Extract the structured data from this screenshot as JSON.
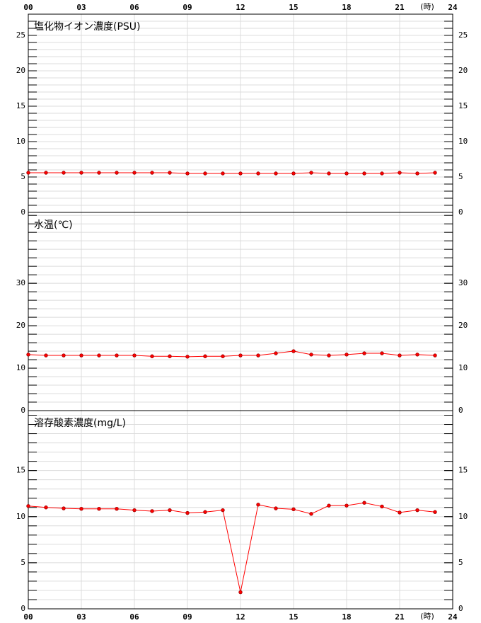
{
  "chart_data": [
    {
      "type": "line",
      "title": "塩化物イオン濃度(PSU)",
      "xlabel": "(時)",
      "xtick_labels": "top",
      "x": [
        0,
        1,
        2,
        3,
        4,
        5,
        6,
        7,
        8,
        9,
        10,
        11,
        12,
        13,
        14,
        15,
        16,
        17,
        18,
        19,
        20,
        21,
        22,
        23
      ],
      "series": [
        {
          "color": "#ff0000",
          "values": [
            5.6,
            5.6,
            5.6,
            5.6,
            5.6,
            5.6,
            5.6,
            5.6,
            5.6,
            5.5,
            5.5,
            5.5,
            5.5,
            5.5,
            5.5,
            5.5,
            5.6,
            5.5,
            5.5,
            5.5,
            5.5,
            5.6,
            5.5,
            5.6
          ]
        }
      ],
      "xlim": [
        0,
        24
      ],
      "xticks": [
        {
          "value": 0,
          "label": "00"
        },
        {
          "value": 3,
          "label": "03"
        },
        {
          "value": 6,
          "label": "06"
        },
        {
          "value": 9,
          "label": "09"
        },
        12,
        15,
        18,
        21,
        24
      ],
      "ylim": [
        0,
        28
      ],
      "yticks": [
        0,
        5,
        10,
        15,
        20,
        25
      ],
      "minor_tick_interval": 1,
      "grid": true
    },
    {
      "type": "line",
      "title": "水温(℃)",
      "xtick_labels": "none",
      "x": [
        0,
        1,
        2,
        3,
        4,
        5,
        6,
        7,
        8,
        9,
        10,
        11,
        12,
        13,
        14,
        15,
        16,
        17,
        18,
        19,
        20,
        21,
        22,
        23
      ],
      "series": [
        {
          "color": "#ff0000",
          "values": [
            13.2,
            13.0,
            13.0,
            13.0,
            13.0,
            13.0,
            13.0,
            12.8,
            12.8,
            12.7,
            12.8,
            12.8,
            13.0,
            13.0,
            13.5,
            14.0,
            13.2,
            13.0,
            13.2,
            13.5,
            13.5,
            13.0,
            13.2,
            13.0
          ]
        }
      ],
      "xlim": [
        0,
        24
      ],
      "xticks": [
        0,
        3,
        6,
        9,
        12,
        15,
        18,
        21,
        24
      ],
      "ylim": [
        0,
        46.7
      ],
      "yticks": [
        0,
        10,
        20,
        30
      ],
      "minor_tick_interval": 2,
      "grid": true
    },
    {
      "type": "line",
      "title": "溶存酸素濃度(mg/L)",
      "xlabel": "(時)",
      "xtick_labels": "bottom",
      "x": [
        0,
        1,
        2,
        3,
        4,
        5,
        6,
        7,
        8,
        9,
        10,
        11,
        12,
        13,
        14,
        15,
        16,
        17,
        18,
        19,
        20,
        21,
        22,
        23
      ],
      "series": [
        {
          "color": "#ff0000",
          "values": [
            11.15,
            11.0,
            10.9,
            10.85,
            10.85,
            10.85,
            10.7,
            10.6,
            10.7,
            10.4,
            10.5,
            10.7,
            1.8,
            11.3,
            10.9,
            10.8,
            10.3,
            11.2,
            11.2,
            11.5,
            11.1,
            10.45,
            10.7,
            10.5
          ]
        }
      ],
      "xlim": [
        0,
        24
      ],
      "xticks": [
        {
          "value": 0,
          "label": "00"
        },
        {
          "value": 3,
          "label": "03"
        },
        {
          "value": 6,
          "label": "06"
        },
        {
          "value": 9,
          "label": "09"
        },
        12,
        15,
        18,
        21,
        24
      ],
      "ylim": [
        0,
        21.5
      ],
      "yticks": [
        0,
        5,
        10,
        15
      ],
      "minor_tick_interval": 1,
      "grid": true
    }
  ]
}
